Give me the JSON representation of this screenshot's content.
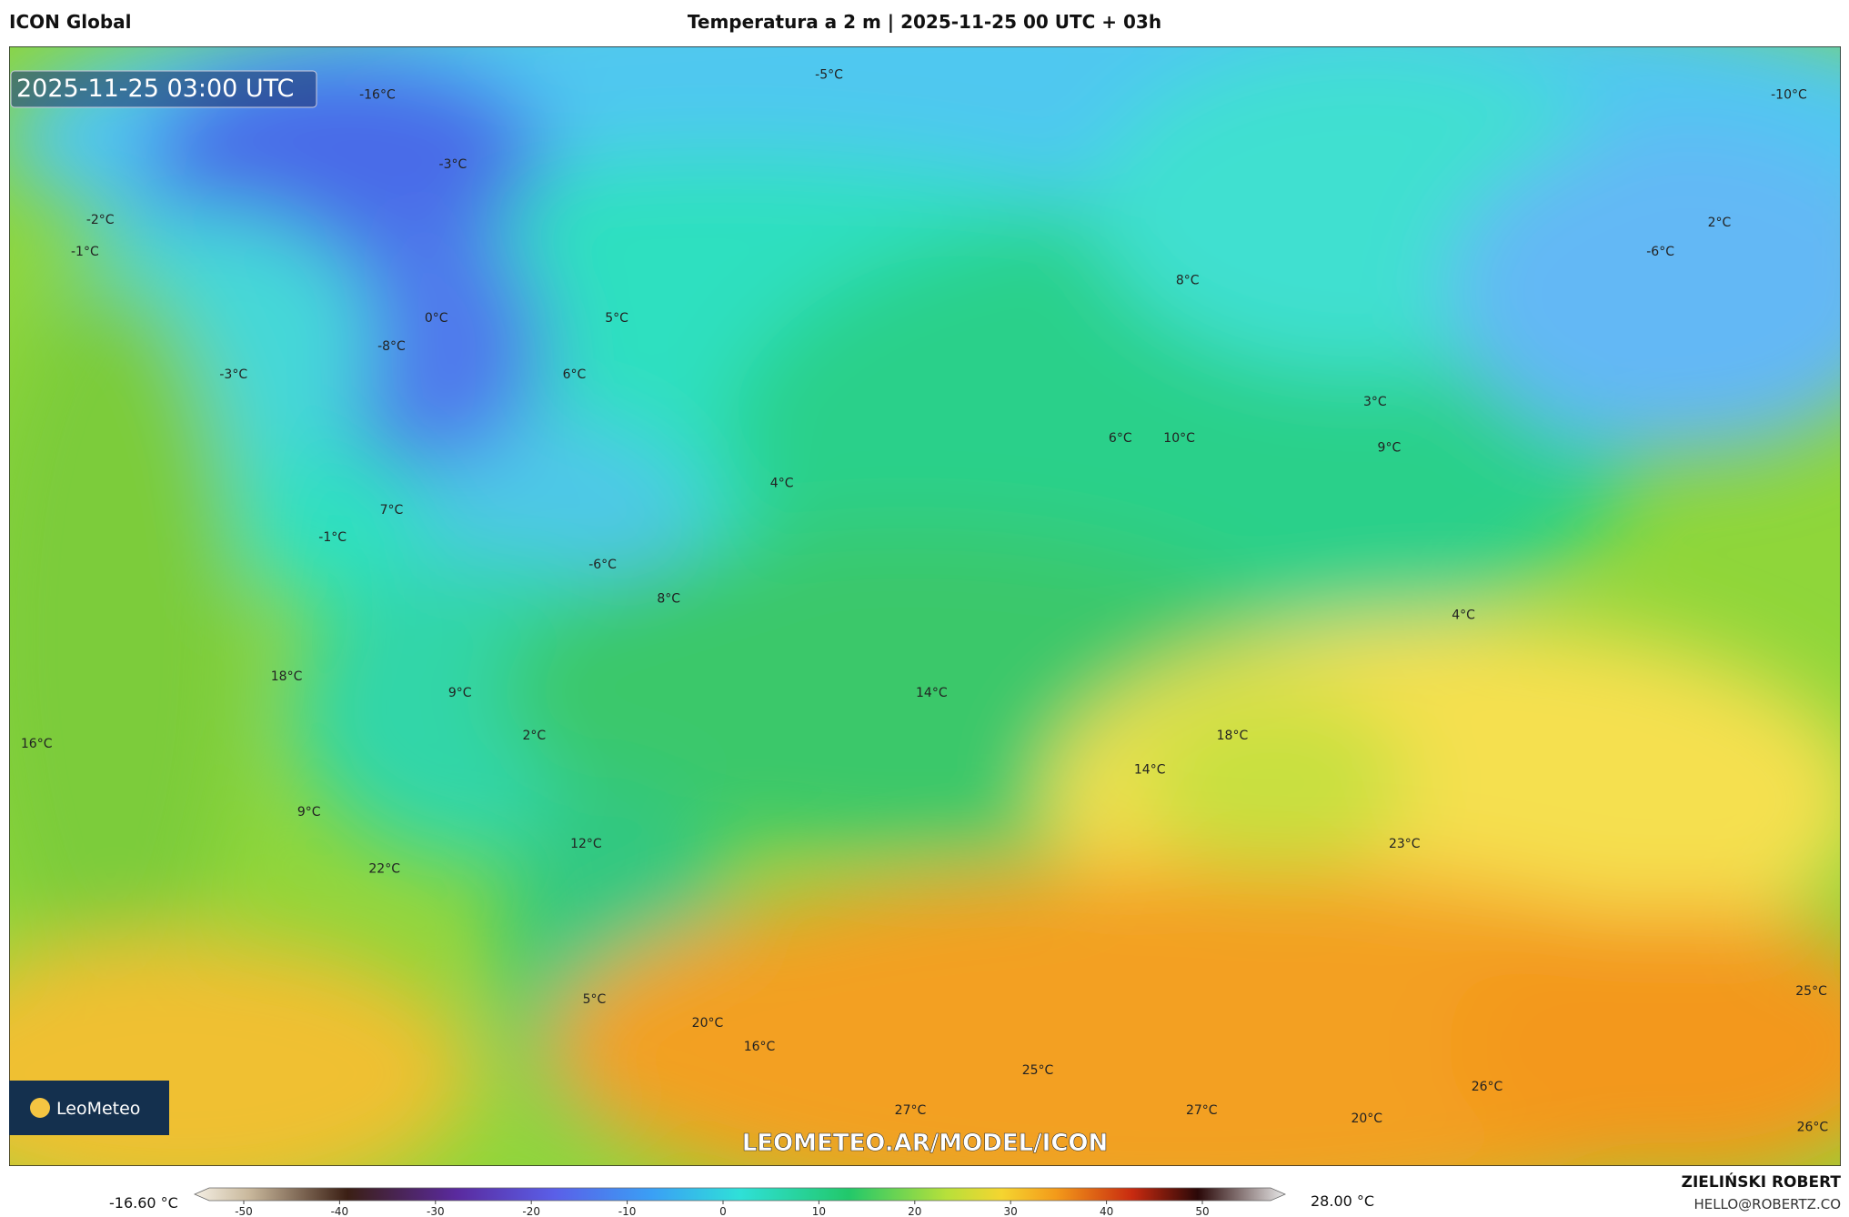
{
  "header": {
    "model": "ICON Global",
    "title": "Temperatura a 2 m | 2025-11-25 00 UTC + 03h"
  },
  "map": {
    "timestamp": "2025-11-25 03:00 UTC",
    "watermark": "LEOMETEO.AR/MODEL/ICON",
    "logo": "LeoMeteo",
    "labels": [
      "-16°C",
      "-5°C",
      "-10°C",
      "-3°C",
      "-2°C",
      "-1°C",
      "2°C",
      "-6°C",
      "8°C",
      "0°C",
      "5°C",
      "-8°C",
      "-3°C",
      "6°C",
      "3°C",
      "6°C",
      "10°C",
      "9°C",
      "4°C",
      "7°C",
      "-1°C",
      "-6°C",
      "8°C",
      "4°C",
      "18°C",
      "9°C",
      "14°C",
      "16°C",
      "2°C",
      "18°C",
      "14°C",
      "9°C",
      "12°C",
      "23°C",
      "22°C",
      "25°C",
      "5°C",
      "20°C",
      "16°C",
      "25°C",
      "26°C",
      "27°C",
      "27°C",
      "20°C",
      "26°C"
    ]
  },
  "colorbar": {
    "min_label": "-16.60 °C",
    "max_label": "28.00 °C",
    "ticks": [
      -50,
      -40,
      -30,
      -20,
      -10,
      0,
      10,
      20,
      30,
      40,
      50
    ]
  },
  "credits": {
    "author": "ZIELIŃSKI ROBERT",
    "email": "HELLO@ROBERTZ.CO"
  }
}
